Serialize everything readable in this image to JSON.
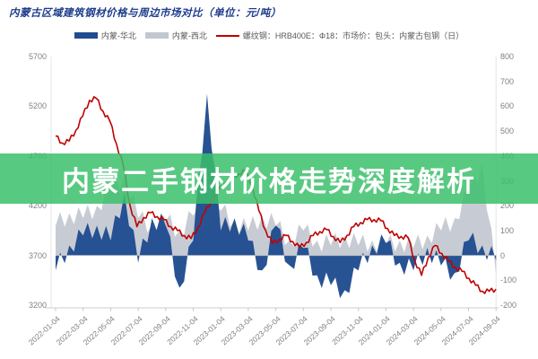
{
  "header": {
    "title": "内蒙古区域建筑钢材价格与周边市场对比（单位：元/吨）",
    "title_color": "#1e3c8c"
  },
  "overlay": {
    "text": "内蒙二手钢材价格走势深度解析",
    "background_color": "#3bc06b",
    "background_opacity": 0.85,
    "text_color": "#ffffff"
  },
  "legend": [
    {
      "label": "内蒙-华北",
      "swatch": "box",
      "color": "#1f4c8f"
    },
    {
      "label": "内蒙-西北",
      "swatch": "box",
      "color": "#c2c8d0"
    },
    {
      "label": "螺纹钢：HRB400E：Φ18：市场价：包头：内蒙古包钢（日）",
      "swatch": "line",
      "color": "#c00000"
    }
  ],
  "chart_data": {
    "type": "mixed",
    "title": "内蒙古区域建筑钢材价格与周边市场对比（单位：元/吨）",
    "grid": false,
    "legend_position": "top-center",
    "left_axis": {
      "label": "元/吨",
      "min": 3200,
      "max": 5700,
      "ticks": [
        5700,
        5200,
        4700,
        4200,
        3700,
        3200
      ]
    },
    "right_axis": {
      "min": -200,
      "max": 800,
      "ticks": [
        800,
        700,
        600,
        500,
        400,
        300,
        200,
        100,
        0,
        -100,
        -200
      ]
    },
    "categories": [
      "2022-01-04",
      "2022-03-04",
      "2022-05-04",
      "2022-07-04",
      "2022-09-04",
      "2022-11-04",
      "2023-01-04",
      "2023-03-04",
      "2023-05-04",
      "2023-07-04",
      "2023-09-04",
      "2023-11-04",
      "2024-01-04",
      "2024-03-04",
      "2024-05-04",
      "2024-07-04",
      "2024-09-04"
    ],
    "sample_months": [
      "2022-01",
      "2022-02",
      "2022-03",
      "2022-04",
      "2022-05",
      "2022-06",
      "2022-07",
      "2022-08",
      "2022-09",
      "2022-10",
      "2022-11",
      "2022-12",
      "2023-01",
      "2023-02",
      "2023-03",
      "2023-04",
      "2023-05",
      "2023-06",
      "2023-07",
      "2023-08",
      "2023-09",
      "2023-10",
      "2023-11",
      "2023-12",
      "2024-01",
      "2024-02",
      "2024-03",
      "2024-04",
      "2024-05",
      "2024-06",
      "2024-07",
      "2024-08",
      "2024-09"
    ],
    "series": [
      {
        "name": "内蒙-西北",
        "type": "area",
        "axis": "right",
        "color": "#c2c8d0",
        "values": [
          120,
          170,
          150,
          200,
          260,
          320,
          150,
          120,
          140,
          100,
          160,
          120,
          180,
          140,
          100,
          160,
          120,
          60,
          100,
          60,
          40,
          80,
          40,
          60,
          40,
          60,
          30,
          80,
          100,
          150,
          250,
          370,
          -80
        ]
      },
      {
        "name": "内蒙-华北",
        "type": "area",
        "axis": "right",
        "color": "#1f4c8f",
        "values": [
          -60,
          40,
          80,
          120,
          60,
          250,
          -30,
          150,
          120,
          -130,
          60,
          650,
          100,
          150,
          60,
          -60,
          120,
          -40,
          30,
          -80,
          -120,
          -140,
          -60,
          40,
          50,
          -30,
          -60,
          30,
          -40,
          -70,
          60,
          40,
          -20
        ]
      },
      {
        "name": "螺纹钢：HRB400E：Φ18：市场价：包头：内蒙古包钢（日）",
        "type": "line",
        "axis": "left",
        "color": "#c00000",
        "values": [
          4900,
          4830,
          4850,
          4960,
          5100,
          5260,
          5280,
          5150,
          5050,
          4820,
          4600,
          4200,
          3990,
          4080,
          4130,
          4090,
          4060,
          3990,
          3950,
          3900,
          3870,
          3980,
          4130,
          4250,
          4350,
          4430,
          4480,
          4520,
          4550,
          4400,
          4150,
          3950,
          3820,
          3860,
          3900,
          3840,
          3780,
          3830,
          3900,
          3940,
          3960,
          3890,
          3830,
          3900,
          3990,
          4030,
          4060,
          4060,
          4050,
          3970,
          3900,
          3890,
          3880,
          3650,
          3500,
          3680,
          3800,
          3720,
          3640,
          3580,
          3540,
          3470,
          3400,
          3340,
          3340,
          3360
        ]
      }
    ]
  }
}
